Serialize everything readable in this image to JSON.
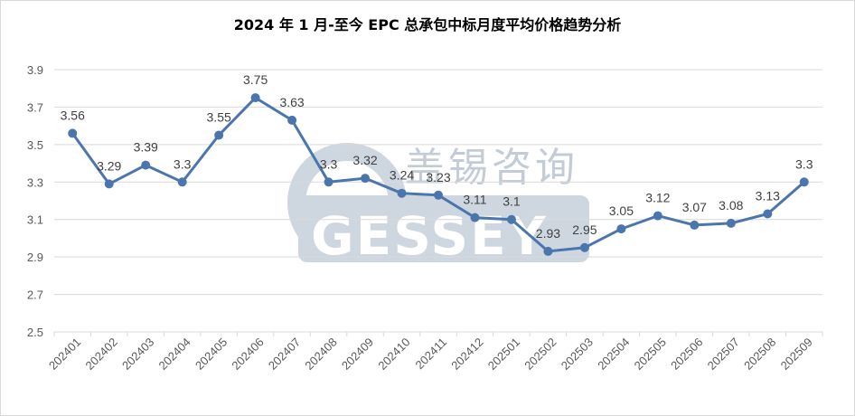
{
  "chart_data": {
    "type": "line",
    "title": "2024 年 1 月-至今 EPC 总承包中标月度平均价格趋势分析",
    "categories": [
      "202401",
      "202402",
      "202403",
      "202404",
      "202405",
      "202406",
      "202407",
      "202408",
      "202409",
      "202410",
      "202411",
      "202412",
      "202501",
      "202502",
      "202503",
      "202504",
      "202505",
      "202506",
      "202507",
      "202508",
      "202509"
    ],
    "series": [
      {
        "values": [
          3.56,
          3.29,
          3.39,
          3.3,
          3.55,
          3.75,
          3.63,
          3.3,
          3.32,
          3.24,
          3.23,
          3.11,
          3.1,
          2.93,
          2.95,
          3.05,
          3.12,
          3.07,
          3.08,
          3.13,
          3.3
        ]
      }
    ],
    "ylim": [
      2.5,
      3.9
    ],
    "yticks": [
      "2.5",
      "2.7",
      "2.9",
      "3.1",
      "3.3",
      "3.5",
      "3.7",
      "3.9"
    ],
    "grid": true,
    "line_color": "#4a76ad"
  },
  "watermark": {
    "text": "盖锡咨询",
    "word": "GESSEY"
  }
}
